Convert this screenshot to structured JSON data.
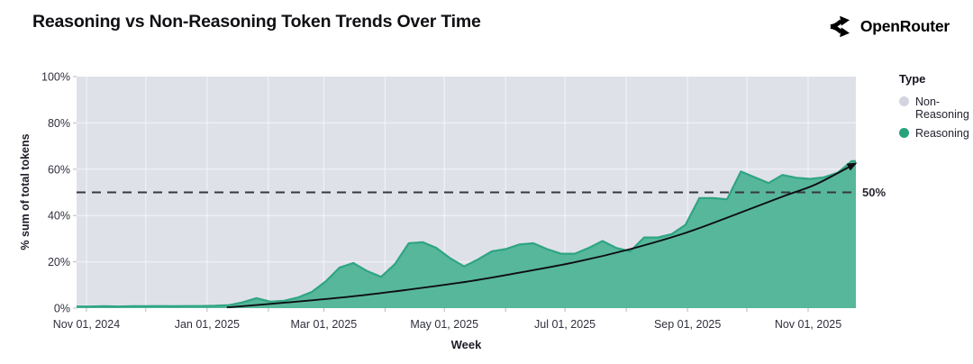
{
  "header": {
    "title": "Reasoning vs Non-Reasoning Token Trends Over Time",
    "brand": "OpenRouter"
  },
  "legend": {
    "title": "Type",
    "items": [
      {
        "label": "Non-Reasoning",
        "color": "#d3d4df"
      },
      {
        "label": "Reasoning",
        "color": "#27a37b"
      }
    ]
  },
  "chart_data": {
    "type": "area",
    "title": "Reasoning vs Non-Reasoning Token Trends Over Time",
    "xlabel": "Week",
    "ylabel": "% sum of total tokens",
    "ylim": [
      0,
      100
    ],
    "stacked_to_100": true,
    "grid": true,
    "legend_position": "right",
    "y_ticks": [
      {
        "value": 0,
        "label": "0%"
      },
      {
        "value": 20,
        "label": "20%"
      },
      {
        "value": 40,
        "label": "40%"
      },
      {
        "value": 60,
        "label": "60%"
      },
      {
        "value": 80,
        "label": "80%"
      },
      {
        "value": 100,
        "label": "100%"
      }
    ],
    "x_ticks": [
      {
        "date": "2024-11-01",
        "label": "Nov 01, 2024"
      },
      {
        "date": "2025-01-01",
        "label": "Jan 01, 2025"
      },
      {
        "date": "2025-03-01",
        "label": "Mar 01, 2025"
      },
      {
        "date": "2025-05-01",
        "label": "May 01, 2025"
      },
      {
        "date": "2025-07-01",
        "label": "Jul 01, 2025"
      },
      {
        "date": "2025-09-01",
        "label": "Sep 01, 2025"
      },
      {
        "date": "2025-11-01",
        "label": "Nov 01, 2025"
      }
    ],
    "month_gridlines": [
      "2024-11-01",
      "2024-12-01",
      "2025-01-01",
      "2025-02-01",
      "2025-03-01",
      "2025-04-01",
      "2025-05-01",
      "2025-06-01",
      "2025-07-01",
      "2025-08-01",
      "2025-09-01",
      "2025-10-01",
      "2025-11-01"
    ],
    "ref_line": {
      "value": 50,
      "label": "50%"
    },
    "series": [
      {
        "name": "Reasoning",
        "color_fill": "#57b79b",
        "color_stroke": "#2ea583",
        "start_week": "2024-10-27",
        "interval_days": 7,
        "values_pct": [
          0.7,
          0.7,
          0.8,
          0.7,
          0.8,
          0.8,
          0.9,
          0.8,
          0.9,
          0.9,
          1.0,
          1.3,
          2.5,
          4.3,
          2.8,
          3.2,
          4.6,
          7.0,
          11.5,
          17.5,
          19.5,
          16.0,
          13.5,
          19.0,
          28.0,
          28.5,
          26.0,
          21.5,
          18.0,
          21.0,
          24.5,
          25.5,
          27.5,
          28.0,
          25.5,
          23.5,
          23.5,
          26.0,
          29.0,
          26.0,
          24.5,
          30.5,
          30.5,
          32.0,
          36.0,
          47.5,
          47.5,
          47.0,
          59.0,
          56.5,
          54.0,
          57.5,
          56.3,
          55.8,
          56.5,
          58.5,
          63.5
        ]
      },
      {
        "name": "Non-Reasoning",
        "color_fill": "#dfe1e9",
        "note": "remainder to 100% (plot background)"
      }
    ],
    "trend_annotation": {
      "shape": "smooth rising curve with arrowhead",
      "color": "#0e0e12",
      "points_day_value": [
        [
          76,
          0.3
        ],
        [
          107,
          2.5
        ],
        [
          139,
          5.0
        ],
        [
          166,
          7.8
        ],
        [
          198,
          11.5
        ],
        [
          225,
          15.5
        ],
        [
          253,
          20.0
        ],
        [
          280,
          25.5
        ],
        [
          308,
          32.5
        ],
        [
          335,
          41.0
        ],
        [
          358,
          48.5
        ],
        [
          374,
          53.5
        ],
        [
          394,
          62.5
        ]
      ]
    },
    "colors": {
      "plot_background": "#dfe1e9",
      "gridline": "rgba(255,255,255,0.65)",
      "ref_line": "#373741",
      "tick_text": "#30303e"
    }
  }
}
